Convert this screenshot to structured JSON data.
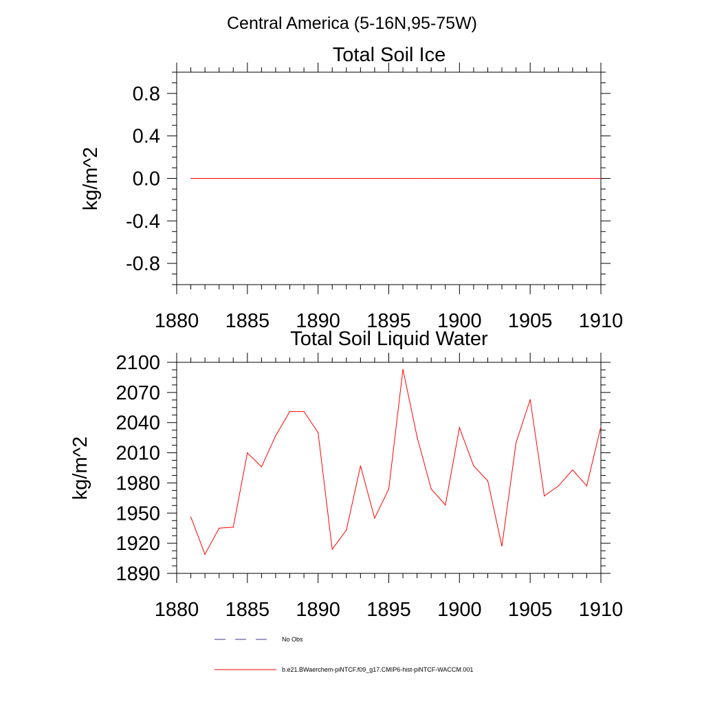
{
  "page": {
    "suptitle": "Central America (5-16N,95-75W)"
  },
  "chart_data": [
    {
      "type": "line",
      "title": "Total Soil Ice",
      "ylabel": "kg/m^2",
      "xlabel": "",
      "xlim": [
        1880,
        1910
      ],
      "ylim": [
        -1,
        1
      ],
      "x_ticks": [
        1880,
        1885,
        1890,
        1895,
        1900,
        1905,
        1910
      ],
      "x_tick_labels": [
        "1880",
        "1885",
        "1890",
        "1895",
        "1900",
        "1905",
        "1910"
      ],
      "y_ticks": [
        0.8,
        0.4,
        0.0,
        -0.4,
        -0.8
      ],
      "y_tick_labels": [
        "0.8",
        "0.4",
        "0.0",
        "-0.4",
        "-0.8"
      ],
      "grid": false,
      "series": [
        {
          "name": "b.e21.BWaerchem-piNTCF.f09_g17.CMIP6-hist-piNTCF-WACCM.001",
          "color": "#ff0000",
          "x": [
            1881,
            1882,
            1883,
            1884,
            1885,
            1886,
            1887,
            1888,
            1889,
            1890,
            1891,
            1892,
            1893,
            1894,
            1895,
            1896,
            1897,
            1898,
            1899,
            1900,
            1901,
            1902,
            1903,
            1904,
            1905,
            1906,
            1907,
            1908,
            1909,
            1910
          ],
          "values": [
            0,
            0,
            0,
            0,
            0,
            0,
            0,
            0,
            0,
            0,
            0,
            0,
            0,
            0,
            0,
            0,
            0,
            0,
            0,
            0,
            0,
            0,
            0,
            0,
            0,
            0,
            0,
            0,
            0,
            0
          ]
        }
      ]
    },
    {
      "type": "line",
      "title": "Total Soil Liquid Water",
      "ylabel": "kg/m^2",
      "xlabel": "",
      "xlim": [
        1880,
        1910
      ],
      "ylim": [
        1890,
        2100
      ],
      "x_ticks": [
        1880,
        1885,
        1890,
        1895,
        1900,
        1905,
        1910
      ],
      "x_tick_labels": [
        "1880",
        "1885",
        "1890",
        "1895",
        "1900",
        "1905",
        "1910"
      ],
      "y_ticks": [
        2100,
        2070,
        2040,
        2010,
        1980,
        1950,
        1920,
        1890
      ],
      "y_tick_labels": [
        "2100",
        "2070",
        "2040",
        "2010",
        "1980",
        "1950",
        "1920",
        "1890"
      ],
      "grid": false,
      "series": [
        {
          "name": "b.e21.BWaerchem-piNTCF.f09_g17.CMIP6-hist-piNTCF-WACCM.001",
          "color": "#ff0000",
          "x": [
            1881,
            1882,
            1883,
            1884,
            1885,
            1886,
            1887,
            1888,
            1889,
            1890,
            1891,
            1892,
            1893,
            1894,
            1895,
            1896,
            1897,
            1898,
            1899,
            1900,
            1901,
            1902,
            1903,
            1904,
            1905,
            1906,
            1907,
            1908,
            1909,
            1910
          ],
          "values": [
            1946,
            1909,
            1935,
            1936,
            2010,
            1996,
            2027,
            2051,
            2051,
            2030,
            1914,
            1933,
            1997,
            1945,
            1974,
            2093,
            2026,
            1974,
            1958,
            2035,
            1997,
            1982,
            1917,
            2020,
            2063,
            1967,
            1977,
            1993,
            1977,
            2036
          ]
        }
      ]
    }
  ],
  "legend": {
    "placement": "bottom",
    "items": [
      {
        "label": "No Obs",
        "style": "dashed",
        "color": "#3b3b8f"
      },
      {
        "label": "b.e21.BWaerchem-piNTCF.f09_g17.CMIP6-hist-piNTCF-WACCM.001",
        "style": "solid",
        "color": "#ff0000"
      }
    ]
  }
}
